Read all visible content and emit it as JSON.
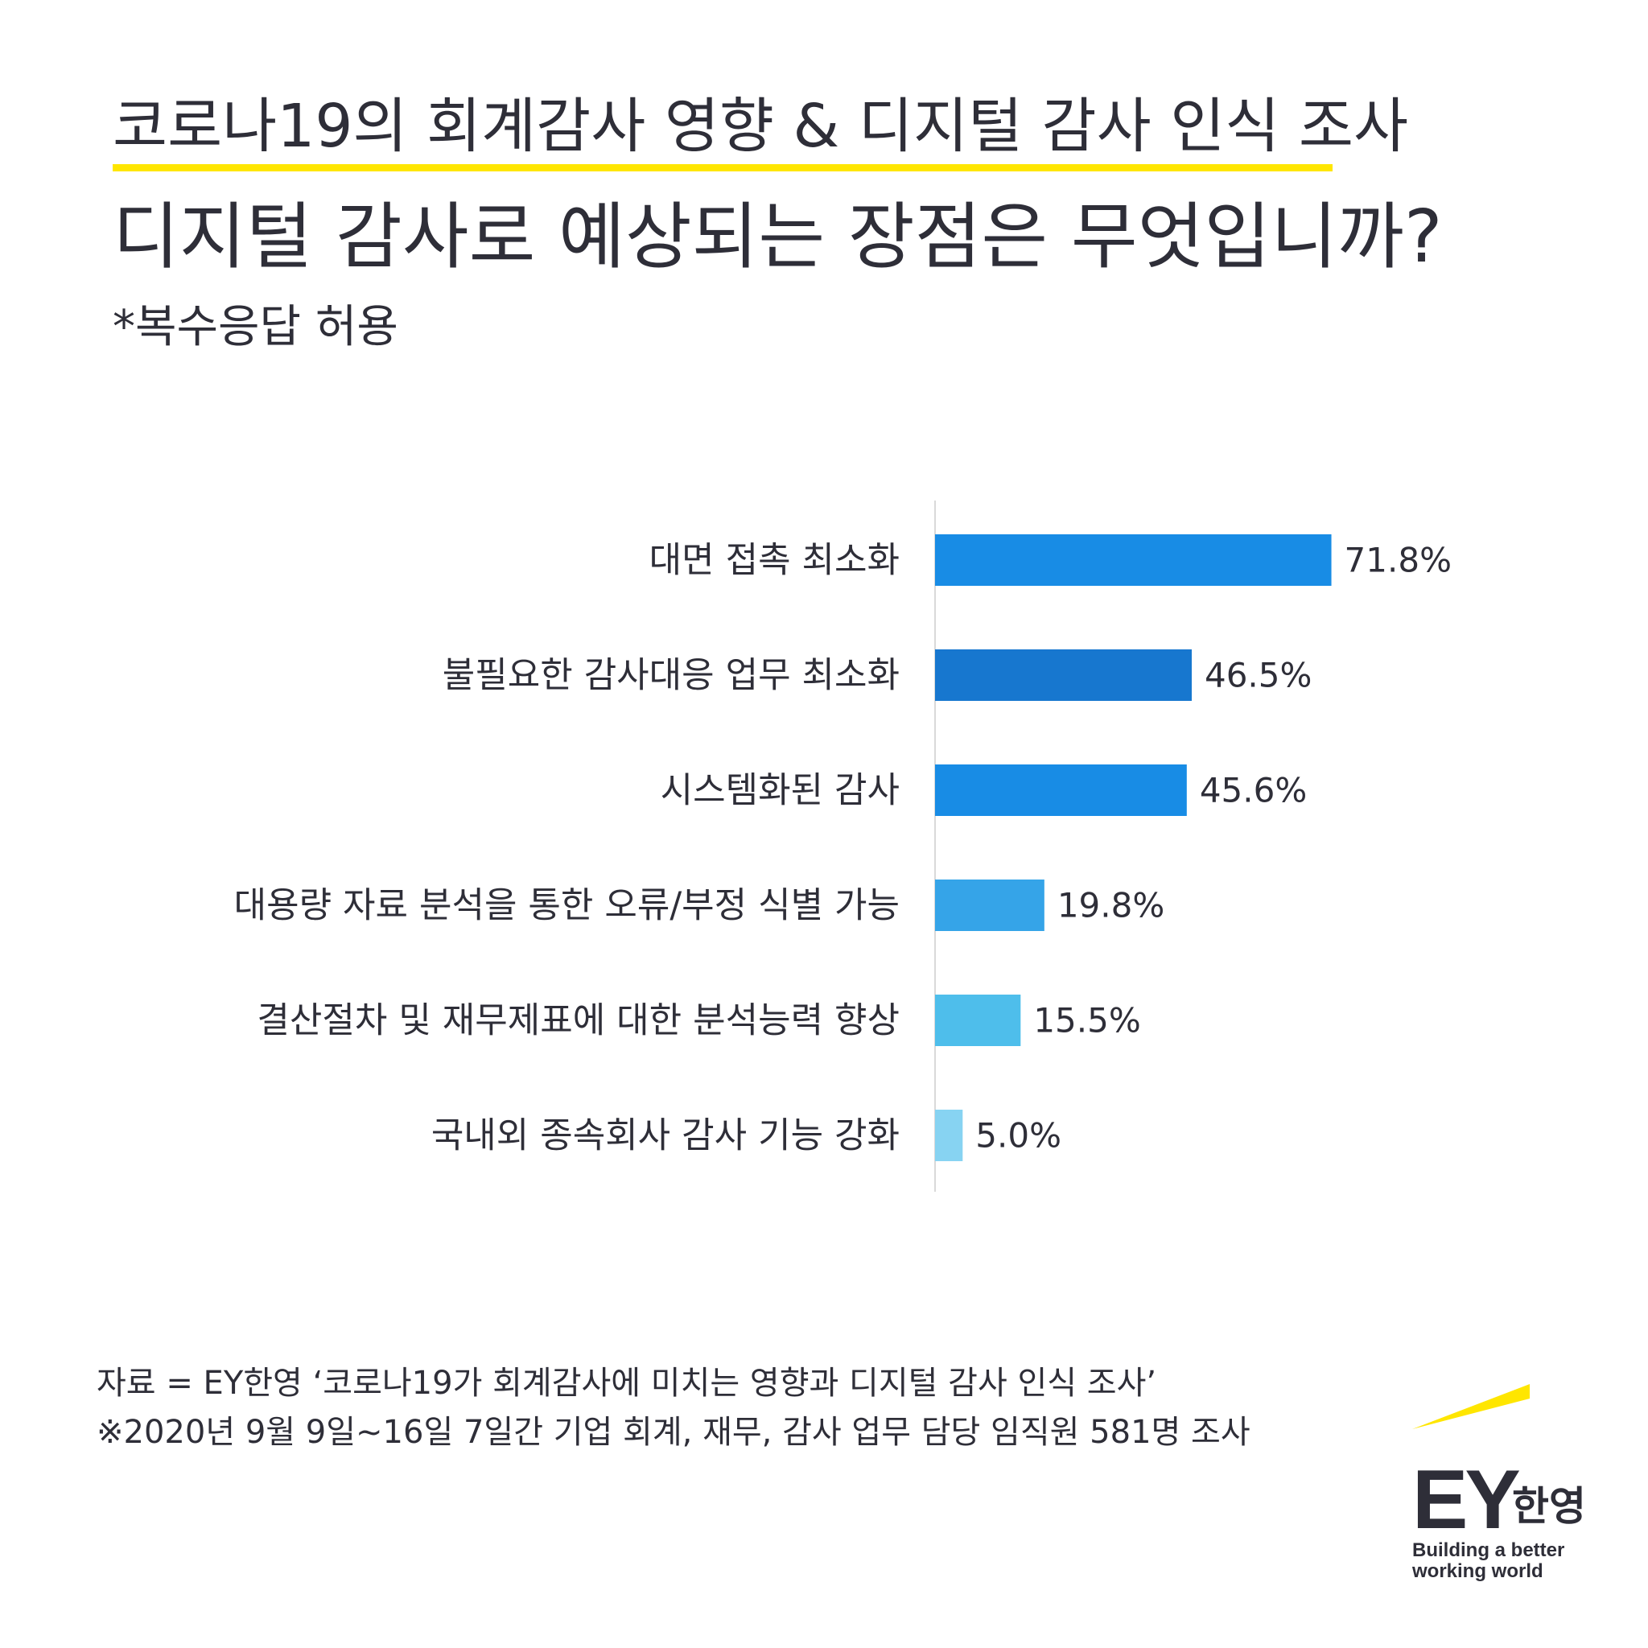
{
  "header": {
    "supertitle": "코로나19의 회계감사 영향 & 디지털 감사 인식 조사",
    "title": "디지털 감사로 예상되는 장점은 무엇입니까?",
    "subtitle": "*복수응답 허용"
  },
  "colors": {
    "accent_yellow": "#ffe600",
    "text": "#2e2e38",
    "axis_line": "#d9d9d9"
  },
  "chart_data": {
    "type": "bar",
    "orientation": "horizontal",
    "categories": [
      "대면 접촉 최소화",
      "불필요한 감사대응 업무 최소화",
      "시스템화된 감사",
      "대용량 자료 분석을 통한 오류/부정 식별 가능",
      "결산절차 및 재무제표에 대한 분석능력 향상",
      "국내외 종속회사 감사 기능 강화"
    ],
    "values": [
      71.8,
      46.5,
      45.6,
      19.8,
      15.5,
      5.0
    ],
    "value_labels": [
      "71.8%",
      "46.5%",
      "45.6%",
      "19.8%",
      "15.5%",
      "5.0%"
    ],
    "bar_colors": [
      "#188ce5",
      "#1777cf",
      "#188ce5",
      "#35a4e8",
      "#4ebeeb",
      "#87d3f2"
    ],
    "xlim": [
      0,
      100
    ],
    "grid": false,
    "legend": "none"
  },
  "footer": {
    "source": "자료 = EY한영 ‘코로나19가 회계감사에 미치는 영향과 디지털 감사 인식 조사’",
    "note": "※2020년 9월 9일~16일 7일간 기업 회계, 재무, 감사 업무 담당 임직원 581명 조사"
  },
  "logo": {
    "brand": "EY",
    "brand_korean": "한영",
    "tagline_line1": "Building a better",
    "tagline_line2": "working world"
  }
}
